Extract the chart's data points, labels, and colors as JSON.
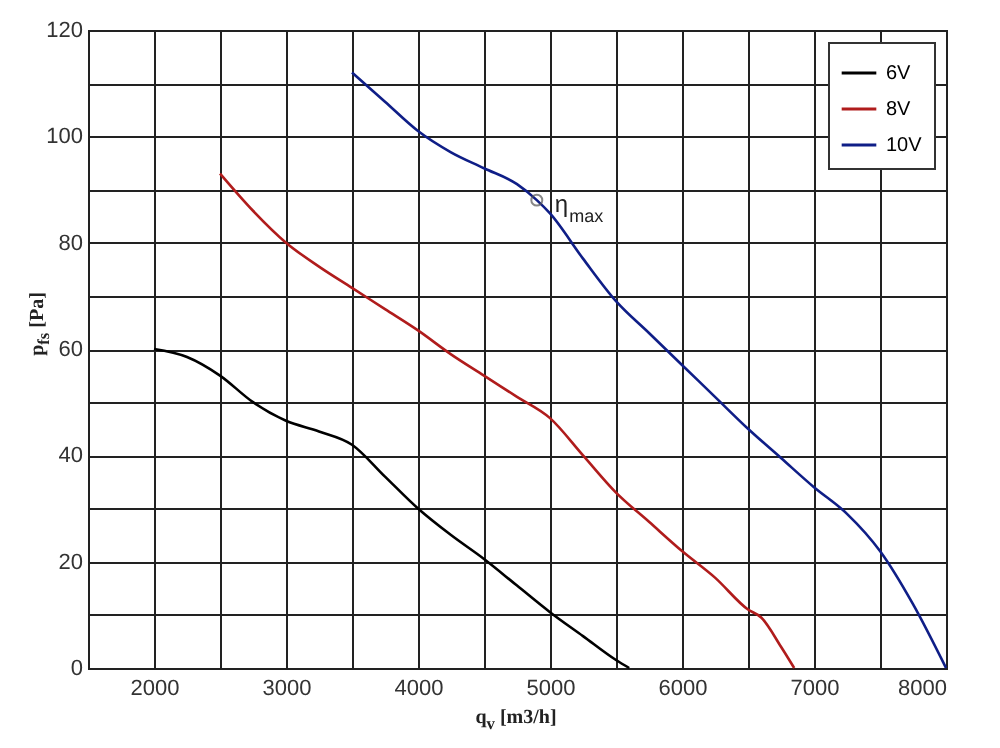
{
  "chart_data": {
    "type": "line",
    "xlabel": "q$_{v}$ [m3/h]",
    "ylabel": "p$_{fs}$ [Pa]",
    "xlim": [
      1500,
      8000
    ],
    "ylim": [
      0,
      120
    ],
    "xticks": [
      {
        "value": 1500,
        "label": null
      },
      2000,
      {
        "value": 2500,
        "label": null
      },
      3000,
      {
        "value": 3500,
        "label": null
      },
      4000,
      {
        "value": 4500,
        "label": null
      },
      5000,
      {
        "value": 5500,
        "label": null
      },
      6000,
      {
        "value": 6500,
        "label": null
      },
      7000,
      {
        "value": 7500,
        "label": null
      },
      8000
    ],
    "yticks": [
      0,
      {
        "value": 10,
        "label": null
      },
      20,
      {
        "value": 30,
        "label": null
      },
      40,
      {
        "value": 50,
        "label": null
      },
      60,
      {
        "value": 70,
        "label": null
      },
      80,
      {
        "value": 90,
        "label": null
      },
      100,
      {
        "value": 110,
        "label": null
      },
      120
    ],
    "grid": true,
    "legend": "top right",
    "marker": "none",
    "line_style": "solid",
    "annotations": [
      {
        "text": "η$_{max}$",
        "x": 4900,
        "y": 88
      }
    ],
    "series": [
      {
        "name": "6V",
        "color": "#000000",
        "x": [
          2000,
          2250,
          2500,
          2750,
          3000,
          3250,
          3500,
          3750,
          4000,
          4250,
          4500,
          4750,
          5000,
          5250,
          5500,
          5600
        ],
        "values": [
          60,
          58.5,
          55,
          50,
          46.5,
          44.5,
          42,
          36,
          30,
          25,
          20.5,
          15.5,
          10.5,
          6,
          1.5,
          0
        ]
      },
      {
        "name": "8V",
        "color": "#b01c1c",
        "x": [
          2500,
          2750,
          3000,
          3250,
          3500,
          3750,
          4000,
          4250,
          4500,
          4750,
          5000,
          5250,
          5500,
          5750,
          6000,
          6250,
          6500,
          6600,
          6750,
          6850
        ],
        "values": [
          93,
          86,
          80,
          75.5,
          71.5,
          67.5,
          63.5,
          59,
          55,
          51,
          47,
          40,
          33,
          27.5,
          22,
          17,
          11,
          9.5,
          4,
          0
        ]
      },
      {
        "name": "10V",
        "color": "#0f1e87",
        "x": [
          3500,
          3750,
          4000,
          4250,
          4500,
          4750,
          4900,
          5000,
          5250,
          5500,
          5750,
          6000,
          6250,
          6500,
          6750,
          7000,
          7250,
          7500,
          7750,
          8000
        ],
        "values": [
          112,
          106.5,
          101,
          97,
          94,
          91,
          88,
          85.5,
          77,
          69,
          63,
          57,
          51,
          45,
          39.5,
          34,
          29,
          22,
          12,
          0
        ]
      }
    ]
  }
}
